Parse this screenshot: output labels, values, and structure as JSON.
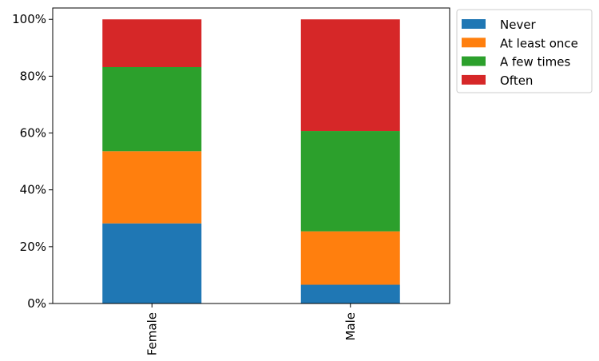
{
  "chart_data": {
    "type": "bar",
    "stacked": true,
    "categories": [
      "Female",
      "Male"
    ],
    "series": [
      {
        "name": "Never",
        "color": "#1f77b4",
        "values": [
          28.2,
          6.6
        ]
      },
      {
        "name": "At least once",
        "color": "#ff7f0e",
        "values": [
          25.4,
          18.8
        ]
      },
      {
        "name": "A few times",
        "color": "#2ca02c",
        "values": [
          29.6,
          35.3
        ]
      },
      {
        "name": "Often",
        "color": "#d62728",
        "values": [
          16.8,
          39.3
        ]
      }
    ],
    "ylim": [
      0,
      104
    ],
    "yticks": [
      0,
      20,
      40,
      60,
      80,
      100
    ],
    "ytick_labels": [
      "0%",
      "20%",
      "40%",
      "60%",
      "80%",
      "100%"
    ],
    "xtick_rotation": "vertical",
    "grid": false,
    "legend_position": "outside-upper-right"
  }
}
